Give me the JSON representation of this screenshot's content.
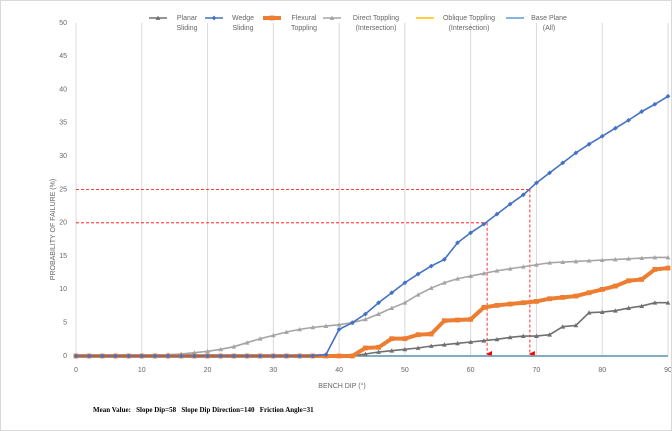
{
  "chart_data": {
    "type": "line",
    "x_label": "BENCH DIP (°)",
    "y_label": "PROBABILITY OF FAILURE (%)",
    "x": [
      0,
      2,
      4,
      6,
      8,
      10,
      12,
      14,
      16,
      18,
      20,
      22,
      24,
      26,
      28,
      30,
      32,
      34,
      36,
      38,
      40,
      42,
      44,
      46,
      48,
      50,
      52,
      54,
      56,
      58,
      60,
      62,
      64,
      66,
      68,
      70,
      72,
      74,
      76,
      78,
      80,
      82,
      84,
      86,
      88,
      90
    ],
    "series": [
      {
        "name": "Planar Sliding",
        "color": "#707070",
        "marker": "triangle",
        "values": [
          0,
          0,
          0,
          0,
          0,
          0,
          0,
          0,
          0,
          0,
          0,
          0,
          0,
          0,
          0,
          0,
          0,
          0,
          0,
          0,
          0,
          0,
          0.3,
          0.6,
          0.8,
          1,
          1.2,
          1.5,
          1.7,
          1.9,
          2.1,
          2.3,
          2.5,
          2.8,
          3,
          3,
          3.2,
          4.4,
          4.6,
          6.5,
          6.6,
          6.8,
          7.2,
          7.5,
          8,
          8
        ]
      },
      {
        "name": "Wedge Sliding",
        "color": "#4472c4",
        "marker": "diamond",
        "values": [
          0,
          0,
          0,
          0,
          0,
          0,
          0,
          0,
          0,
          0,
          0,
          0,
          0,
          0,
          0,
          0,
          0,
          0,
          0,
          0.2,
          4,
          5,
          6.3,
          8,
          9.5,
          11,
          12.3,
          13.5,
          14.5,
          17,
          18.5,
          19.8,
          21.3,
          22.8,
          24.2,
          26,
          27.5,
          29,
          30.5,
          31.8,
          33,
          34.2,
          35.4,
          36.7,
          37.8,
          39
        ]
      },
      {
        "name": "Flexural Toppling",
        "color": "#ed7d31",
        "marker": "square",
        "values": [
          0,
          0,
          0,
          0,
          0,
          0,
          0,
          0,
          0,
          0,
          0,
          0,
          0,
          0,
          0,
          0,
          0,
          0,
          0,
          0,
          0,
          0,
          1.2,
          1.3,
          2.6,
          2.6,
          3.2,
          3.3,
          5.3,
          5.4,
          5.5,
          7.3,
          7.6,
          7.8,
          8,
          8.2,
          8.6,
          8.8,
          9,
          9.5,
          10,
          10.5,
          11.3,
          11.5,
          13,
          13.2
        ]
      },
      {
        "name": "Direct Toppling (Intersection)",
        "color": "#a5a5a5",
        "marker": "triangle",
        "values": [
          0,
          0,
          0,
          0,
          0,
          0,
          0.1,
          0.2,
          0.3,
          0.5,
          0.7,
          1,
          1.4,
          2,
          2.6,
          3.1,
          3.6,
          4,
          4.3,
          4.5,
          4.7,
          5,
          5.5,
          6.3,
          7.2,
          8,
          9.2,
          10.2,
          11,
          11.6,
          12,
          12.4,
          12.8,
          13.1,
          13.4,
          13.7,
          14,
          14.1,
          14.2,
          14.3,
          14.4,
          14.5,
          14.6,
          14.7,
          14.8,
          14.8
        ]
      },
      {
        "name": "Oblique Toppling (Intersection)",
        "color": "#ffc000",
        "marker": "none",
        "values": [
          0,
          0,
          0,
          0,
          0,
          0,
          0,
          0,
          0,
          0,
          0,
          0,
          0,
          0,
          0,
          0,
          0,
          0,
          0,
          0,
          0,
          0,
          0,
          0,
          0,
          0,
          0,
          0,
          0,
          0,
          0,
          0,
          0,
          0,
          0,
          0,
          0,
          0,
          0,
          0,
          0,
          0,
          0,
          0,
          0,
          0
        ]
      },
      {
        "name": "Base Plane (All)",
        "color": "#5b9bd5",
        "marker": "none",
        "values": [
          0,
          0,
          0,
          0,
          0,
          0,
          0,
          0,
          0,
          0,
          0,
          0,
          0,
          0,
          0,
          0,
          0,
          0,
          0,
          0,
          0,
          0,
          0,
          0,
          0,
          0,
          0,
          0,
          0,
          0,
          0,
          0,
          0,
          0,
          0,
          0,
          0,
          0,
          0,
          0,
          0,
          0,
          0,
          0,
          0,
          0
        ]
      }
    ],
    "xlim": [
      0,
      90
    ],
    "xticks": [
      0,
      10,
      20,
      30,
      40,
      50,
      60,
      70,
      80,
      90
    ],
    "ylim": [
      0,
      50
    ],
    "yticks": [
      0,
      5,
      10,
      15,
      20,
      25,
      30,
      35,
      40,
      45,
      50
    ],
    "grid": "x",
    "annotations": [
      {
        "x": 62.5,
        "y": 20
      },
      {
        "x": 69,
        "y": 25
      }
    ],
    "annotation_color": "#ff0000",
    "footer": "Mean Value:   Slope Dip=58   Slope Dip Direction=140   Friction Angle=31"
  }
}
